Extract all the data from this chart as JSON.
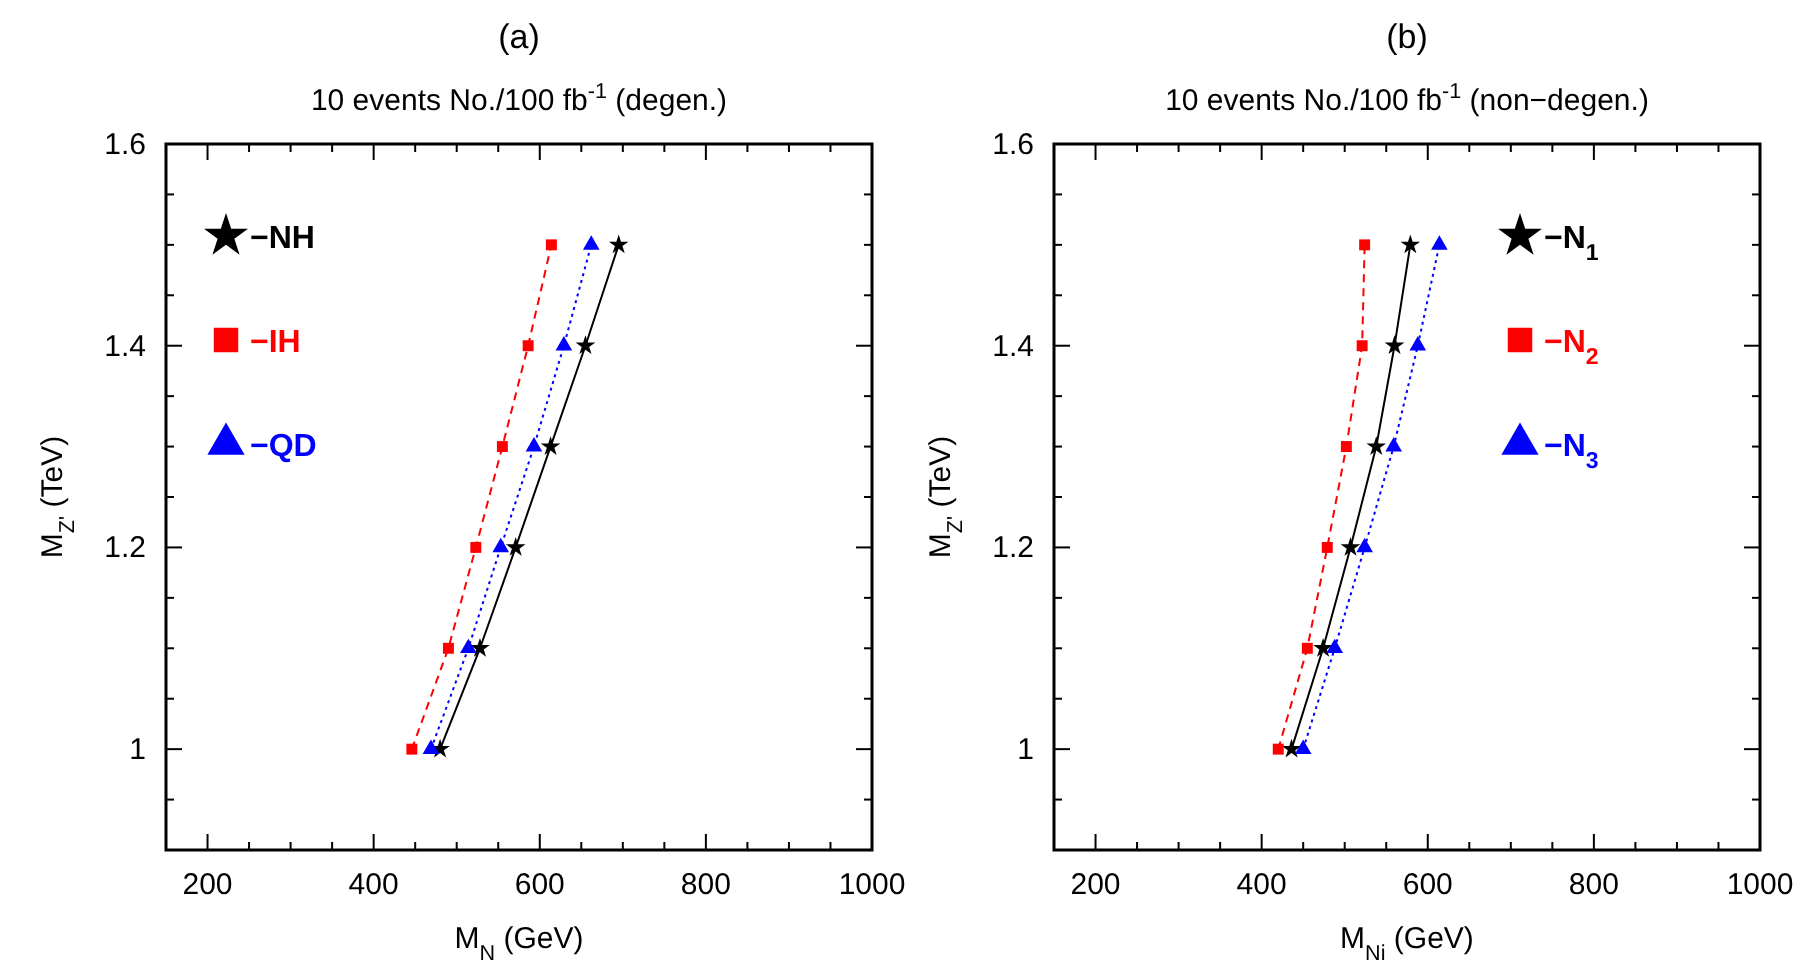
{
  "chart_data": [
    {
      "type": "line",
      "title": "(a)",
      "subtitle": "10 events No./100 fb$^{-1}$ (degen.)",
      "xlabel": "M$_{N}$ (GeV)",
      "ylabel": "M$_{Z'}$ (TeV)",
      "xlim": [
        150,
        1000
      ],
      "ylim": [
        0.9,
        1.6
      ],
      "xticks": [
        200,
        {
          "value": 250,
          "label": null
        },
        {
          "value": 300,
          "label": null
        },
        {
          "value": 350,
          "label": null
        },
        400,
        {
          "value": 450,
          "label": null
        },
        {
          "value": 500,
          "label": null
        },
        {
          "value": 550,
          "label": null
        },
        600,
        {
          "value": 650,
          "label": null
        },
        {
          "value": 700,
          "label": null
        },
        {
          "value": 750,
          "label": null
        },
        800,
        {
          "value": 850,
          "label": null
        },
        {
          "value": 900,
          "label": null
        },
        {
          "value": 950,
          "label": null
        },
        1000
      ],
      "yticks": [
        {
          "value": 0.95,
          "label": null
        },
        1,
        {
          "value": 1.05,
          "label": null
        },
        {
          "value": 1.1,
          "label": null
        },
        {
          "value": 1.15,
          "label": null
        },
        1.2,
        {
          "value": 1.25,
          "label": null
        },
        {
          "value": 1.3,
          "label": null
        },
        {
          "value": 1.35,
          "label": null
        },
        1.4,
        {
          "value": 1.45,
          "label": null
        },
        {
          "value": 1.5,
          "label": null
        },
        {
          "value": 1.55,
          "label": null
        },
        1.6
      ],
      "legend": "top left",
      "grid": false,
      "series": [
        {
          "name": "−NH",
          "color": "#000000",
          "marker": "star",
          "line_style": "solid",
          "x": [
            480,
            528,
            571,
            613,
            655,
            695
          ],
          "values": [
            1.0,
            1.1,
            1.2,
            1.3,
            1.4,
            1.5
          ]
        },
        {
          "name": "−IH",
          "color": "#ff0000",
          "marker": "square",
          "line_style": "dashed",
          "x": [
            446,
            490,
            523,
            555,
            586,
            614
          ],
          "values": [
            1.0,
            1.1,
            1.2,
            1.3,
            1.4,
            1.5
          ]
        },
        {
          "name": "−QD",
          "color": "#0000ff",
          "marker": "triangle",
          "line_style": "dotted",
          "x": [
            469,
            514,
            553,
            593,
            629,
            662
          ],
          "values": [
            1.0,
            1.1,
            1.2,
            1.3,
            1.4,
            1.5
          ]
        }
      ]
    },
    {
      "type": "line",
      "title": "(b)",
      "subtitle": "10 events No./100 fb$^{-1}$ (non−degen.)",
      "xlabel": "M$_{Ni}$ (GeV)",
      "ylabel": "M$_{Z'}$ (TeV)",
      "xlim": [
        150,
        1000
      ],
      "ylim": [
        0.9,
        1.6
      ],
      "xticks": [
        200,
        {
          "value": 250,
          "label": null
        },
        {
          "value": 300,
          "label": null
        },
        {
          "value": 350,
          "label": null
        },
        400,
        {
          "value": 450,
          "label": null
        },
        {
          "value": 500,
          "label": null
        },
        {
          "value": 550,
          "label": null
        },
        600,
        {
          "value": 650,
          "label": null
        },
        {
          "value": 700,
          "label": null
        },
        {
          "value": 750,
          "label": null
        },
        800,
        {
          "value": 850,
          "label": null
        },
        {
          "value": 900,
          "label": null
        },
        {
          "value": 950,
          "label": null
        },
        1000
      ],
      "yticks": [
        {
          "value": 0.95,
          "label": null
        },
        1,
        {
          "value": 1.05,
          "label": null
        },
        {
          "value": 1.1,
          "label": null
        },
        {
          "value": 1.15,
          "label": null
        },
        1.2,
        {
          "value": 1.25,
          "label": null
        },
        {
          "value": 1.3,
          "label": null
        },
        {
          "value": 1.35,
          "label": null
        },
        1.4,
        {
          "value": 1.45,
          "label": null
        },
        {
          "value": 1.5,
          "label": null
        },
        {
          "value": 1.55,
          "label": null
        },
        1.6
      ],
      "legend": "top right",
      "grid": false,
      "series": [
        {
          "name": "−N$_{1}$",
          "color": "#000000",
          "marker": "star",
          "line_style": "solid",
          "x": [
            436,
            474,
            507,
            538,
            560,
            579
          ],
          "values": [
            1.0,
            1.1,
            1.2,
            1.3,
            1.4,
            1.5
          ]
        },
        {
          "name": "−N$_{2}$",
          "color": "#ff0000",
          "marker": "square",
          "line_style": "dashed",
          "x": [
            420,
            455,
            479,
            502,
            521,
            524
          ],
          "values": [
            1.0,
            1.1,
            1.2,
            1.3,
            1.4,
            1.5
          ]
        },
        {
          "name": "−N$_{3}$",
          "color": "#0000ff",
          "marker": "triangle",
          "line_style": "dotted",
          "x": [
            450,
            488,
            524,
            559,
            588,
            614
          ],
          "values": [
            1.0,
            1.1,
            1.2,
            1.3,
            1.4,
            1.5
          ]
        }
      ]
    }
  ]
}
